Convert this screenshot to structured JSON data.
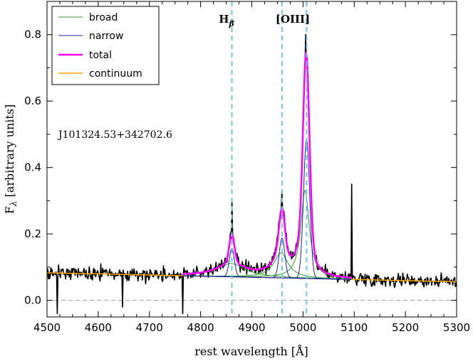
{
  "chart_data": {
    "type": "line",
    "title": "",
    "xlabel": "rest wavelength [Å]",
    "ylabel": "F_λ [arbitrary units]",
    "xlim": [
      4500,
      5300
    ],
    "ylim": [
      -0.05,
      0.9
    ],
    "x_ticks": [
      4500,
      4600,
      4700,
      4800,
      4900,
      5000,
      5100,
      5200,
      5300
    ],
    "y_ticks": [
      0.0,
      0.2,
      0.4,
      0.6,
      0.8
    ],
    "x_tick_labels": [
      "4500",
      "4600",
      "4700",
      "4800",
      "4900",
      "5000",
      "5100",
      "5200",
      "5300"
    ],
    "y_tick_labels": [
      "0.0",
      "0.2",
      "0.4",
      "0.6",
      "0.8"
    ],
    "object_name": "J101324.53+342702.6",
    "line_annotations": [
      {
        "label": "H",
        "subscript": "β",
        "wavelength": 4861
      },
      {
        "label": "[OIII]",
        "wavelength": 4959
      },
      {
        "label": "",
        "wavelength": 5007
      }
    ],
    "zero_line": 0.0,
    "fit_range": [
      4765,
      5095
    ],
    "legend": {
      "placement": "top-left",
      "entries": [
        {
          "label": "broad",
          "color": "#2ca02c"
        },
        {
          "label": "narrow",
          "color": "#1f1fb4"
        },
        {
          "label": "total",
          "color": "#ff00ff"
        },
        {
          "label": "continuum",
          "color": "#ffa500"
        }
      ]
    },
    "continuum": {
      "x": [
        4500,
        5300
      ],
      "y": [
        0.083,
        0.056
      ]
    },
    "broad_components": [
      {
        "center": 4860,
        "amplitude": 0.04,
        "sigma": 33
      },
      {
        "center": 4957,
        "amplitude": 0.075,
        "sigma": 17
      },
      {
        "center": 5004,
        "amplitude": 0.265,
        "sigma": 10
      }
    ],
    "narrow_components": [
      {
        "center": 4861,
        "amplitude": 0.085,
        "sigma": 5
      },
      {
        "center": 4959,
        "amplitude": 0.12,
        "sigma": 5.5
      },
      {
        "center": 5007,
        "amplitude": 0.42,
        "sigma": 6
      }
    ],
    "spectrum_peaks": [
      {
        "x": 4861,
        "y": 0.3
      },
      {
        "x": 4959,
        "y": 0.33
      },
      {
        "x": 5005,
        "y": 0.8
      },
      {
        "x": 5095,
        "y": 0.35
      }
    ],
    "spectrum_dips": [
      {
        "x": 4520,
        "y": -0.04
      },
      {
        "x": 4648,
        "y": -0.02
      },
      {
        "x": 4765,
        "y": -0.04
      }
    ],
    "noise_level": 0.014,
    "colors": {
      "spectrum": "#000000",
      "broad": "#2ca02c",
      "narrow": "#1f1fb4",
      "total": "#ff00ff",
      "continuum": "#ffa500",
      "line_markers": "#6ec6f0",
      "zero_line": "#999999"
    }
  }
}
